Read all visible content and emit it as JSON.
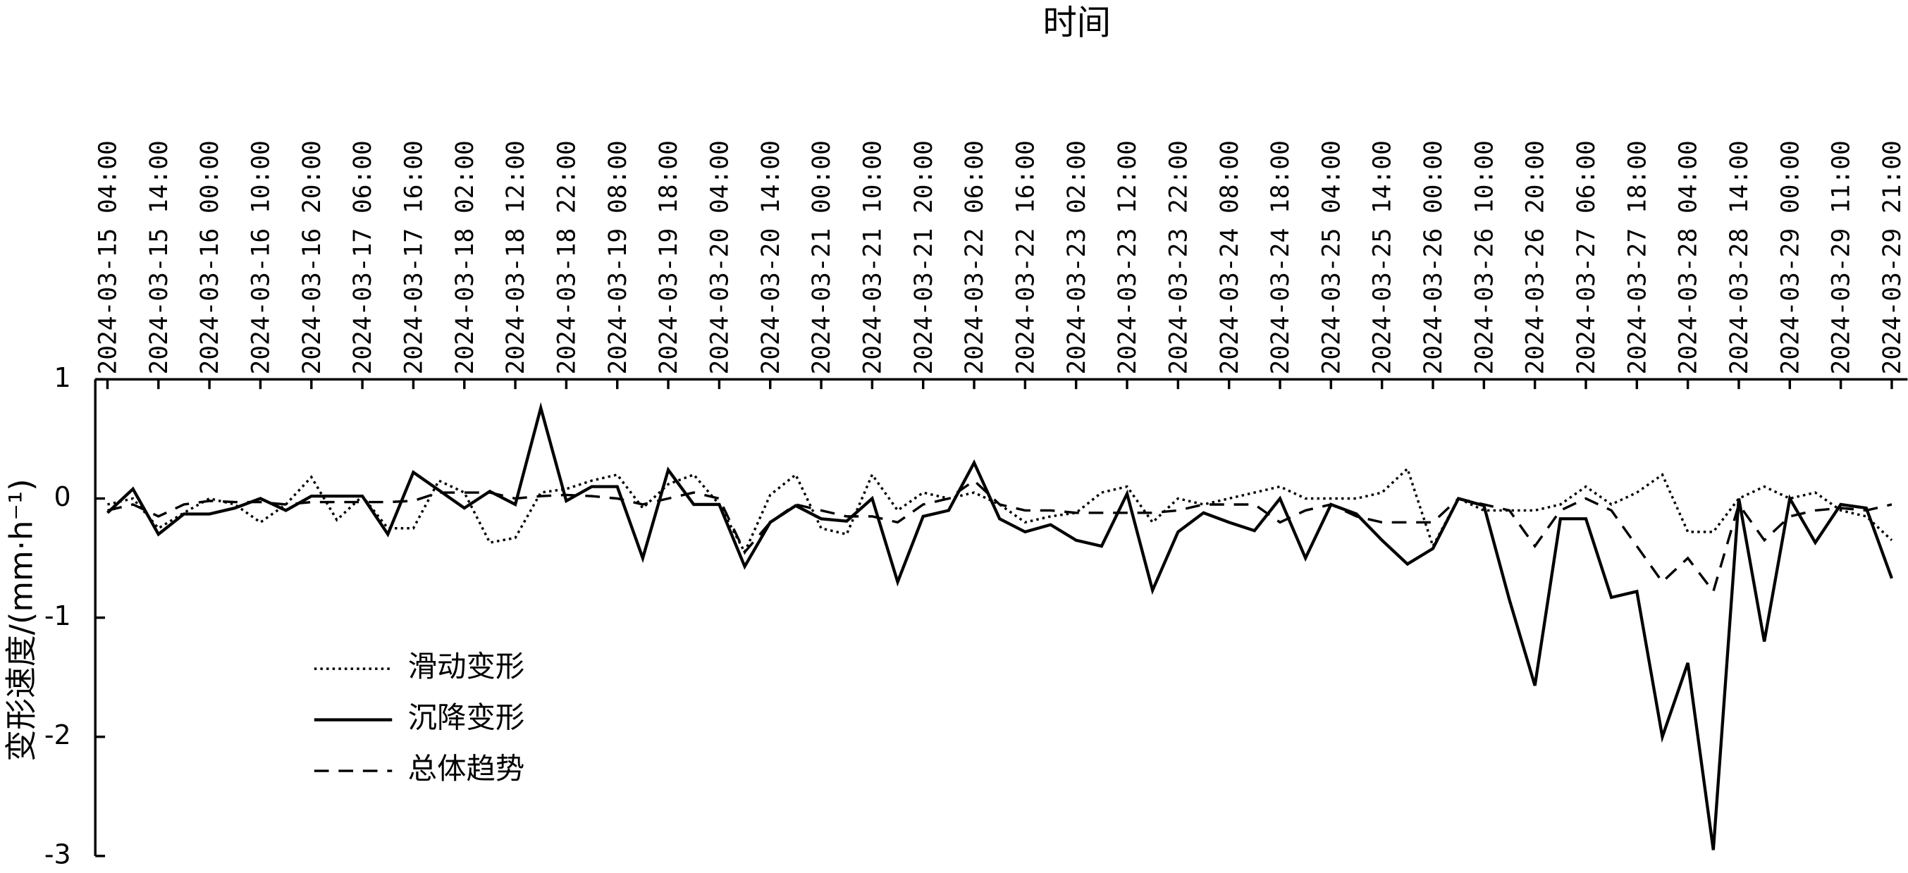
{
  "chart_data": {
    "type": "line",
    "x_label": "时间",
    "y_label": "变形速度/(mm·h⁻¹)",
    "categories": [
      "2024-03-15 04:00",
      null,
      "2024-03-15 14:00",
      null,
      "2024-03-16 00:00",
      null,
      "2024-03-16 10:00",
      null,
      "2024-03-16 20:00",
      null,
      "2024-03-17 06:00",
      null,
      "2024-03-17 16:00",
      null,
      "2024-03-18 02:00",
      null,
      "2024-03-18 12:00",
      null,
      "2024-03-18 22:00",
      null,
      "2024-03-19 08:00",
      null,
      "2024-03-19 18:00",
      null,
      "2024-03-20 04:00",
      null,
      "2024-03-20 14:00",
      null,
      "2024-03-21 00:00",
      null,
      "2024-03-21 10:00",
      null,
      "2024-03-21 20:00",
      null,
      "2024-03-22 06:00",
      null,
      "2024-03-22 16:00",
      null,
      "2024-03-23 02:00",
      null,
      "2024-03-23 12:00",
      null,
      "2024-03-23 22:00",
      null,
      "2024-03-24 08:00",
      null,
      "2024-03-24 18:00",
      null,
      "2024-03-25 04:00",
      null,
      "2024-03-25 14:00",
      null,
      "2024-03-26 00:00",
      null,
      "2024-03-26 10:00",
      null,
      "2024-03-26 20:00",
      null,
      "2024-03-27 06:00",
      null,
      "2024-03-27 18:00",
      null,
      "2024-03-28 04:00",
      null,
      "2024-03-28 14:00",
      null,
      "2024-03-29 00:00",
      null,
      "2024-03-29 11:00",
      null,
      "2024-03-29 21:00"
    ],
    "series": [
      {
        "name": "滑动变形",
        "color": "#000000",
        "style": "dotted",
        "values": [
          -0.05,
          0,
          -0.25,
          -0.12,
          0,
          -0.05,
          -0.2,
          -0.05,
          0.18,
          -0.18,
          0.02,
          -0.25,
          -0.25,
          0.15,
          0.05,
          -0.37,
          -0.33,
          0.05,
          0.08,
          0.15,
          0.2,
          -0.08,
          0.12,
          0.2,
          -0.05,
          -0.45,
          0.03,
          0.2,
          -0.25,
          -0.3,
          0.2,
          -0.1,
          0.05,
          0,
          0.05,
          -0.05,
          -0.2,
          -0.15,
          -0.12,
          0.05,
          0.1,
          -0.2,
          0,
          -0.05,
          0,
          0.05,
          0.1,
          0,
          0,
          0,
          0.05,
          0.25,
          -0.4,
          0,
          -0.1,
          -0.1,
          -0.1,
          -0.05,
          0.1,
          -0.05,
          0.05,
          0.2,
          -0.28,
          -0.28,
          0,
          0.1,
          0,
          0.05,
          -0.1,
          -0.15,
          -0.35
        ]
      },
      {
        "name": "沉降变形",
        "color": "#000000",
        "style": "solid",
        "values": [
          -0.12,
          0.08,
          -0.3,
          -0.13,
          -0.13,
          -0.08,
          0,
          -0.1,
          0.02,
          0.02,
          0.02,
          -0.3,
          0.22,
          0.07,
          -0.08,
          0.06,
          -0.05,
          0.76,
          -0.02,
          0.1,
          0.1,
          -0.5,
          0.24,
          -0.05,
          -0.05,
          -0.57,
          -0.2,
          -0.06,
          -0.17,
          -0.19,
          0,
          -0.7,
          -0.15,
          -0.1,
          0.3,
          -0.17,
          -0.28,
          -0.22,
          -0.35,
          -0.4,
          0.04,
          -0.77,
          -0.28,
          -0.12,
          -0.2,
          -0.27,
          0,
          -0.5,
          -0.05,
          -0.13,
          -0.35,
          -0.55,
          -0.42,
          0,
          -0.06,
          -0.85,
          -1.57,
          -0.17,
          -0.17,
          -0.83,
          -0.78,
          -2,
          -1.38,
          -2.95,
          0,
          -1.2,
          0,
          -0.37,
          -0.05,
          -0.08,
          -0.67
        ]
      },
      {
        "name": "总体趋势",
        "color": "#000000",
        "style": "dashed",
        "values": [
          -0.1,
          -0.05,
          -0.15,
          -0.05,
          -0.02,
          -0.03,
          -0.03,
          -0.05,
          -0.03,
          -0.03,
          -0.03,
          -0.03,
          -0.02,
          0.05,
          0.05,
          0.05,
          0,
          0.02,
          0.03,
          0.02,
          0,
          -0.05,
          0,
          0.05,
          0,
          -0.45,
          -0.2,
          -0.05,
          -0.1,
          -0.15,
          -0.15,
          -0.2,
          -0.05,
          0,
          0.15,
          -0.05,
          -0.1,
          -0.1,
          -0.12,
          -0.12,
          -0.12,
          -0.12,
          -0.1,
          -0.05,
          -0.05,
          -0.05,
          -0.2,
          -0.1,
          -0.05,
          -0.15,
          -0.2,
          -0.2,
          -0.2,
          0,
          -0.05,
          -0.1,
          -0.4,
          -0.1,
          0,
          -0.1,
          -0.4,
          -0.7,
          -0.5,
          -0.78,
          -0.05,
          -0.35,
          -0.15,
          -0.1,
          -0.08,
          -0.1,
          -0.05
        ]
      }
    ],
    "ylim": [
      -3,
      1
    ],
    "yticks": [
      -3,
      -2,
      -1,
      0,
      1
    ],
    "grid": false,
    "x_axis_position": "top",
    "legend": "lower left"
  }
}
